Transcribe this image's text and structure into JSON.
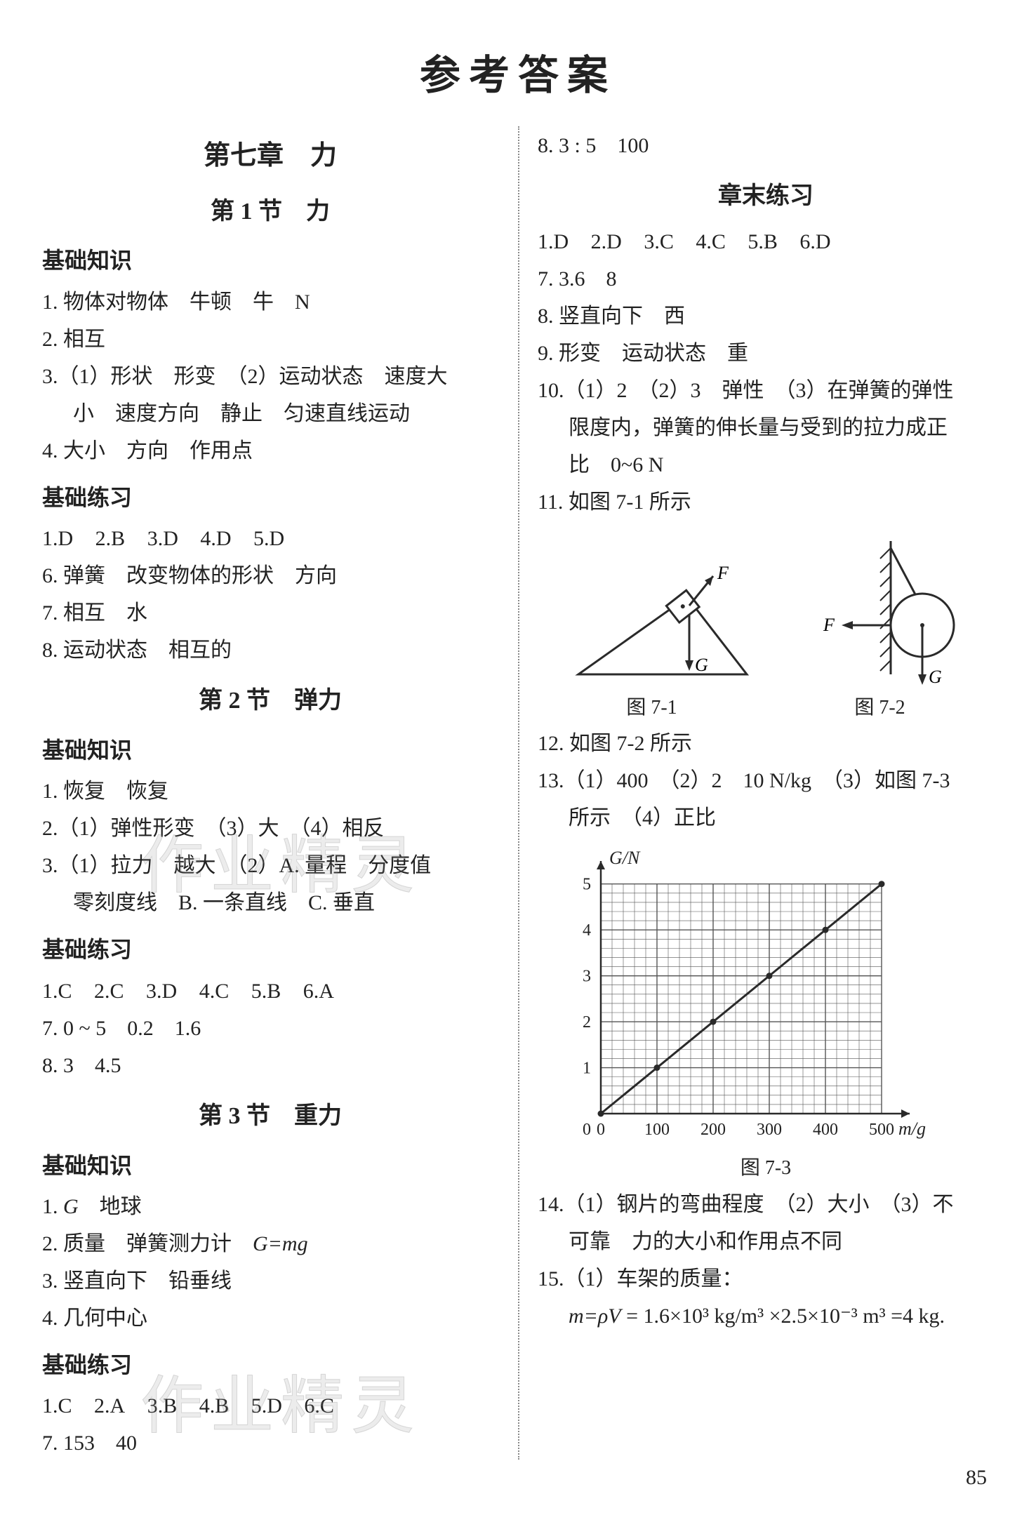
{
  "page": {
    "title": "参考答案",
    "pageNumber": "85"
  },
  "watermark": "作业精灵",
  "left": {
    "chapterTitle": "第七章　力",
    "s1": {
      "title": "第 1 节　力",
      "h1": "基础知识",
      "l1": "1. 物体对物体　牛顿　牛　N",
      "l2": "2. 相互",
      "l3": "3.（1）形状　形变　（2）运动状态　速度大",
      "l3b": "小　速度方向　静止　匀速直线运动",
      "l4": "4. 大小　方向　作用点",
      "h2": "基础练习",
      "mc": [
        "1.D",
        "2.B",
        "3.D",
        "4.D",
        "5.D"
      ],
      "l6": "6. 弹簧　改变物体的形状　方向",
      "l7": "7. 相互　水",
      "l8": "8. 运动状态　相互的"
    },
    "s2": {
      "title": "第 2 节　弹力",
      "h1": "基础知识",
      "l1": "1. 恢复　恢复",
      "l2": "2.（1）弹性形变　（3）大　（4）相反",
      "l3": "3.（1）拉力　越大　（2）A. 量程　分度值",
      "l3b": "零刻度线　B. 一条直线　C. 垂直",
      "h2": "基础练习",
      "mc": [
        "1.C",
        "2.C",
        "3.D",
        "4.C",
        "5.B",
        "6.A"
      ],
      "l7": "7. 0 ~ 5　0.2　1.6",
      "l8": "8. 3　4.5"
    },
    "s3": {
      "title": "第 3 节　重力",
      "h1": "基础知识",
      "l1a": "1. ",
      "l1b": "G",
      "l1c": "　地球",
      "l2a": "2. 质量　弹簧测力计　",
      "l2b": "G=mg",
      "l3": "3. 竖直向下　铅垂线",
      "l4": "4. 几何中心",
      "h2": "基础练习",
      "mc": [
        "1.C",
        "2.A",
        "3.B",
        "4.B",
        "5.D",
        "6.C"
      ],
      "l7": "7. 153　40"
    }
  },
  "right": {
    "top": "8. 3 : 5　100",
    "endTitle": "章末练习",
    "mc": [
      "1.D",
      "2.D",
      "3.C",
      "4.C",
      "5.B",
      "6.D"
    ],
    "l7": "7. 3.6　8",
    "l8": "8. 竖直向下　西",
    "l9": "9. 形变　运动状态　重",
    "l10": "10.（1）2　（2）3　弹性　（3）在弹簧的弹性",
    "l10b": "限度内，弹簧的伸长量与受到的拉力成正",
    "l10c": "比　0~6 N",
    "l11": "11. 如图 7-1 所示",
    "fig71": {
      "caption": "图 7-1",
      "F": "F",
      "G": "G",
      "colors": {
        "stroke": "#2a2a2a",
        "fill": "#ffffff"
      }
    },
    "fig72": {
      "caption": "图 7-2",
      "F": "F",
      "G": "G",
      "colors": {
        "stroke": "#2a2a2a"
      }
    },
    "l12": "12. 如图 7-2 所示",
    "l13": "13.（1）400　（2）2　10 N/kg　（3）如图 7-3",
    "l13b": "所示　（4）正比",
    "fig73": {
      "caption": "图 7-3",
      "type": "line",
      "xlabel": "m/g",
      "ylabel": "G/N",
      "xlim": [
        0,
        550
      ],
      "ylim": [
        0,
        5.5
      ],
      "xticks": [
        0,
        100,
        200,
        300,
        400,
        500
      ],
      "yticks": [
        0,
        1,
        2,
        3,
        4,
        5
      ],
      "grid_color": "#555555",
      "background_color": "#ffffff",
      "line_color": "#2a2a2a",
      "point_color": "#2a2a2a",
      "points": [
        [
          0,
          0
        ],
        [
          100,
          1
        ],
        [
          200,
          2
        ],
        [
          300,
          3
        ],
        [
          400,
          4
        ],
        [
          500,
          5
        ]
      ]
    },
    "l14": "14.（1）钢片的弯曲程度　（2）大小　（3）不",
    "l14b": "可靠　力的大小和作用点不同",
    "l15": "15.（1）车架的质量：",
    "l15eq_a": "m=ρV",
    "l15eq_b": "= 1.6×10³ kg/m³ ×2.5×10⁻³ m³ =4 kg."
  }
}
